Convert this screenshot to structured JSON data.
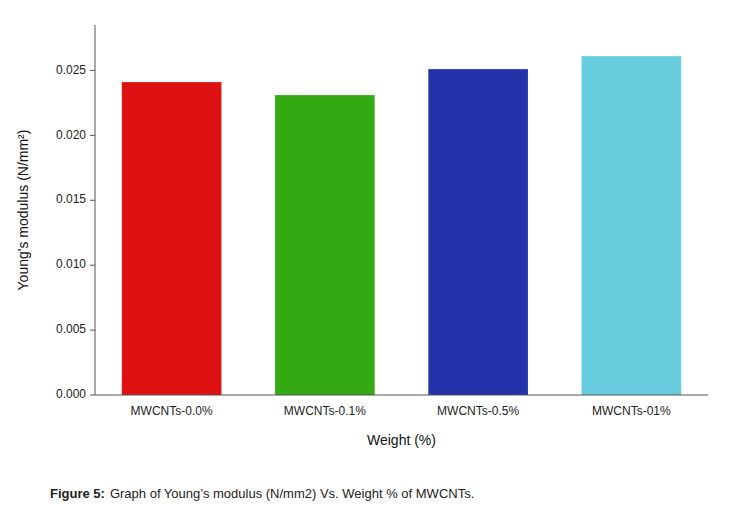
{
  "chart_data": {
    "type": "bar",
    "categories": [
      "MWCNTs-0.0%",
      "MWCNTs-0.1%",
      "MWCNTs-0.5%",
      "MWCNTs-01%"
    ],
    "values": [
      0.0241,
      0.0231,
      0.0251,
      0.0261
    ],
    "colors": [
      "#dd1111",
      "#33aa11",
      "#2233aa",
      "#66ccdd"
    ],
    "y_label": "Young's modulus (N/mm²)",
    "x_label": "Weight (%)",
    "caption_bold": "Figure 5:",
    "caption": "Graph of Young’s modulus (N/mm2) Vs. Weight % of MWCNTs.",
    "ylim": [
      0,
      0.0285
    ],
    "yticks": [
      {
        "value": 0.0,
        "label": "0.000"
      },
      {
        "value": 0.005,
        "label": "0.005"
      },
      {
        "value": 0.01,
        "label": "0.010"
      },
      {
        "value": 0.015,
        "label": "0.015"
      },
      {
        "value": 0.02,
        "label": "0.020"
      },
      {
        "value": 0.025,
        "label": "0.025"
      }
    ],
    "grid": false
  }
}
